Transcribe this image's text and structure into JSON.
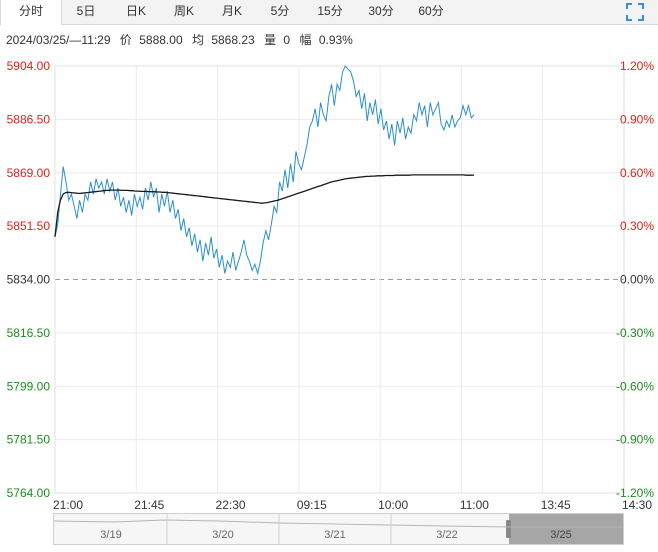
{
  "tabs": [
    "分时",
    "5日",
    "日K",
    "周K",
    "月K",
    "5分",
    "15分",
    "30分",
    "60分"
  ],
  "active_tab": "分时",
  "info": {
    "datetime": "2024/03/25/—11:29",
    "price_label": "价",
    "price": "5888.00",
    "avg_label": "均",
    "avg": "5868.23",
    "vol_label": "量",
    "vol": "0",
    "range_label": "幅",
    "range": "0.93%"
  },
  "colors": {
    "up": "#e0211a",
    "down": "#1e8c1e",
    "price_line": "#2b8ecd",
    "avg_line": "#1a1a1a"
  },
  "icons": {
    "fullscreen": "fullscreen-icon"
  },
  "navigator": {
    "labels": [
      "3/19",
      "3/20",
      "3/21",
      "3/22",
      "3/25"
    ]
  },
  "chart_data": {
    "type": "line",
    "base_price": 5834.0,
    "y_ticks": [
      "5904.00",
      "5886.50",
      "5869.00",
      "5851.50",
      "5834.00",
      "5816.50",
      "5799.00",
      "5781.50",
      "5764.00"
    ],
    "pct_ticks": [
      "1.20%",
      "0.90%",
      "0.60%",
      "0.30%",
      "0.00%",
      "-0.30%",
      "-0.60%",
      "-0.90%",
      "-1.20%"
    ],
    "ylim": [
      5764.0,
      5904.0
    ],
    "x_ticks": [
      "21:00",
      "21:45",
      "22:30",
      "09:15",
      "10:00",
      "11:00",
      "13:45",
      "14:30"
    ],
    "grid": true,
    "series": [
      {
        "values": [
          5848,
          5852,
          5862,
          5871,
          5866,
          5860,
          5862,
          5858,
          5854,
          5860,
          5856,
          5862,
          5860,
          5866,
          5862,
          5867,
          5864,
          5866,
          5862,
          5867,
          5863,
          5866,
          5860,
          5864,
          5858,
          5861,
          5856,
          5860,
          5855,
          5862,
          5858,
          5861,
          5857,
          5864,
          5860,
          5866,
          5861,
          5864,
          5856,
          5862,
          5858,
          5863,
          5856,
          5860,
          5854,
          5857,
          5850,
          5854,
          5848,
          5851,
          5845,
          5849,
          5843,
          5847,
          5840,
          5846,
          5842,
          5848,
          5841,
          5844,
          5838,
          5842,
          5836,
          5840,
          5838,
          5843,
          5837,
          5840,
          5843,
          5847,
          5842,
          5840,
          5837,
          5839,
          5836,
          5840,
          5846,
          5850,
          5847,
          5852,
          5858,
          5856,
          5866,
          5863,
          5870,
          5864,
          5872,
          5866,
          5876,
          5872,
          5870,
          5874,
          5878,
          5884,
          5886,
          5890,
          5884,
          5892,
          5888,
          5886,
          5894,
          5898,
          5891,
          5898,
          5896,
          5902,
          5904,
          5903,
          5902,
          5899,
          5894,
          5896,
          5890,
          5895,
          5886,
          5892,
          5888,
          5893,
          5885,
          5890,
          5883,
          5886,
          5880,
          5885,
          5878,
          5886,
          5882,
          5887,
          5880,
          5884,
          5882,
          5888,
          5886,
          5892,
          5888,
          5891,
          5884,
          5892,
          5888,
          5890,
          5892,
          5885,
          5883,
          5886,
          5884,
          5888,
          5884,
          5886,
          5887,
          5891,
          5888,
          5891,
          5887,
          5888
        ]
      },
      {
        "values": [
          5848,
          5856,
          5860,
          5862,
          5862.5,
          5862.6,
          5862.5,
          5862.4,
          5862.3,
          5862.2,
          5862.3,
          5862.4,
          5862.5,
          5862.6,
          5862.7,
          5862.8,
          5862.9,
          5863.0,
          5863.1,
          5863.2,
          5863.2,
          5863.3,
          5863.3,
          5863.3,
          5863.3,
          5863.2,
          5863.2,
          5863.2,
          5863.1,
          5863.1,
          5863.0,
          5863.0,
          5862.9,
          5862.9,
          5862.9,
          5862.8,
          5862.8,
          5862.8,
          5862.7,
          5862.7,
          5862.6,
          5862.6,
          5862.5,
          5862.4,
          5862.3,
          5862.2,
          5862.1,
          5862.0,
          5861.9,
          5861.8,
          5861.7,
          5861.6,
          5861.5,
          5861.4,
          5861.3,
          5861.2,
          5861.1,
          5861.0,
          5860.9,
          5860.8,
          5860.7,
          5860.6,
          5860.5,
          5860.4,
          5860.3,
          5860.2,
          5860.1,
          5860.0,
          5859.9,
          5859.8,
          5859.7,
          5859.6,
          5859.5,
          5859.4,
          5859.3,
          5859.2,
          5859.1,
          5859.0,
          5859.1,
          5859.2,
          5859.4,
          5859.6,
          5859.8,
          5860.0,
          5860.3,
          5860.6,
          5860.9,
          5861.2,
          5861.5,
          5861.8,
          5862.1,
          5862.4,
          5862.7,
          5863.0,
          5863.3,
          5863.6,
          5863.9,
          5864.2,
          5864.5,
          5864.8,
          5865.1,
          5865.4,
          5865.7,
          5866.0,
          5866.2,
          5866.4,
          5866.6,
          5866.8,
          5867.0,
          5867.1,
          5867.2,
          5867.3,
          5867.4,
          5867.5,
          5867.6,
          5867.7,
          5867.8,
          5867.8,
          5867.9,
          5867.9,
          5868.0,
          5868.0,
          5868.0,
          5868.1,
          5868.1,
          5868.1,
          5868.1,
          5868.2,
          5868.2,
          5868.2,
          5868.2,
          5868.2,
          5868.2,
          5868.3,
          5868.3,
          5868.3,
          5868.3,
          5868.3,
          5868.3,
          5868.3,
          5868.3,
          5868.3,
          5868.3,
          5868.3,
          5868.3,
          5868.3,
          5868.3,
          5868.3,
          5868.3,
          5868.3,
          5868.3,
          5868.3,
          5868.3,
          5868.2,
          5868.2,
          5868.2,
          5868.23
        ]
      }
    ]
  }
}
